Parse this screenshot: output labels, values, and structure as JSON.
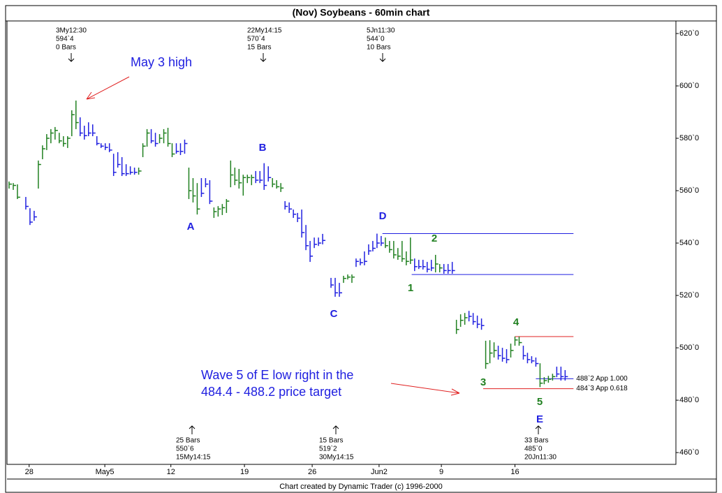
{
  "chart_data": {
    "type": "hlc",
    "title": "(Nov) Soybeans - 60min chart",
    "footer": "Chart created by Dynamic Trader (c) 1996-2000",
    "xlim": [
      -0.5,
      159.5
    ],
    "ylim": [
      455.5,
      624.8
    ],
    "yticks": [
      {
        "value": 460,
        "label": "460`0"
      },
      {
        "value": 480,
        "label": "480`0"
      },
      {
        "value": 500,
        "label": "500`0"
      },
      {
        "value": 520,
        "label": "520`0"
      },
      {
        "value": 540,
        "label": "540`0"
      },
      {
        "value": 560,
        "label": "560`0"
      },
      {
        "value": 580,
        "label": "580`0"
      },
      {
        "value": 600,
        "label": "600`0"
      },
      {
        "value": 620,
        "label": "620`0"
      }
    ],
    "xticks": [
      {
        "value": 4.8,
        "label": "28"
      },
      {
        "value": 22.9,
        "label": "May5"
      },
      {
        "value": 38.7,
        "label": "12"
      },
      {
        "value": 56.3,
        "label": "19"
      },
      {
        "value": 72.5,
        "label": "26"
      },
      {
        "value": 88.5,
        "label": "Jun2"
      },
      {
        "value": 103.4,
        "label": "9"
      },
      {
        "value": 121,
        "label": "16"
      }
    ],
    "x": [
      0,
      1,
      2,
      4,
      5,
      6,
      7,
      8,
      9,
      10,
      11,
      12,
      13,
      14,
      15,
      16,
      17,
      18,
      19,
      20,
      21,
      22,
      23,
      24,
      25,
      26,
      27,
      28,
      29,
      30,
      31,
      32,
      33,
      34,
      35,
      36,
      37,
      38,
      39,
      40,
      41,
      42,
      43,
      44,
      45,
      46,
      47,
      48,
      49,
      50,
      51,
      52,
      53,
      54,
      55,
      56,
      57,
      58,
      59,
      60,
      61,
      62,
      63,
      64,
      65,
      66,
      67,
      68,
      69,
      70,
      71,
      72,
      73,
      74,
      75,
      77,
      78,
      79,
      80,
      81,
      82,
      83,
      84,
      85,
      86,
      87,
      88,
      89,
      90,
      91,
      92,
      93,
      94,
      95,
      96,
      97,
      98,
      99,
      100,
      101,
      102,
      103,
      104,
      105,
      106,
      107,
      108,
      109,
      110,
      111,
      112,
      113,
      114,
      115,
      116,
      117,
      118,
      119,
      120,
      121,
      122,
      123,
      124,
      125,
      126,
      127,
      128,
      129,
      130,
      131,
      132,
      133
    ],
    "high": [
      563.5,
      562.9,
      562.4,
      557.6,
      553.3,
      552.3,
      571.5,
      577.3,
      581.6,
      583.5,
      584.3,
      582.1,
      580.8,
      580.8,
      590.7,
      594.4,
      588,
      584.8,
      586.1,
      585.3,
      580.8,
      578.1,
      578.1,
      578.1,
      574.1,
      574.7,
      572.8,
      570.1,
      569.3,
      568.8,
      568.8,
      578.1,
      583.5,
      583.5,
      582.1,
      581.6,
      583.5,
      584,
      578.1,
      578.1,
      578.1,
      579.5,
      568.8,
      564.8,
      562.9,
      564.8,
      564.8,
      564,
      553.6,
      554.1,
      554.9,
      556.8,
      571.5,
      568.8,
      568.3,
      566.1,
      566.1,
      566.1,
      567.5,
      567.5,
      570.5,
      569.3,
      564.8,
      564,
      562.9,
      556,
      555.5,
      552.8,
      551.5,
      552.8,
      546.9,
      540.8,
      542.1,
      542.1,
      543.5,
      526.7,
      526.7,
      524.8,
      527.5,
      528,
      528,
      534.1,
      534.1,
      536.8,
      539.5,
      540.8,
      543.6,
      542.7,
      542.1,
      540.8,
      540.8,
      538.1,
      540.8,
      536.8,
      542.1,
      534.1,
      533.6,
      533.6,
      532.8,
      533.6,
      535.5,
      532,
      532,
      532,
      532.8,
      510.7,
      512.8,
      513.3,
      514.1,
      513.3,
      512.3,
      511.2,
      502.7,
      502.9,
      502.1,
      500.8,
      500,
      499.5,
      501.6,
      504.3,
      504.3,
      500.8,
      498.1,
      496.8,
      496.3,
      494.1,
      488.8,
      489.3,
      490.1,
      492.8,
      492.8,
      491.5
    ],
    "low": [
      560.8,
      560.3,
      556.8,
      552.8,
      546.9,
      548.5,
      560.8,
      572,
      575.5,
      578.1,
      579.5,
      578.1,
      576.8,
      576.3,
      580.8,
      583.5,
      580.8,
      579.5,
      580.8,
      580.8,
      577.3,
      576.3,
      575.5,
      574.7,
      565.6,
      568.8,
      565.6,
      565.6,
      566.1,
      566.1,
      566.1,
      572.8,
      576.8,
      578.1,
      576.8,
      578.1,
      578.1,
      576.8,
      572.8,
      574.1,
      573.6,
      574.1,
      556.8,
      555.5,
      550.9,
      557.6,
      561.3,
      554.9,
      549.6,
      550.1,
      550.7,
      551.5,
      561.3,
      562.1,
      560.8,
      558.1,
      562.9,
      562.1,
      562.9,
      562.9,
      560.3,
      563.5,
      561.3,
      560.8,
      559.5,
      552.8,
      551.5,
      549.6,
      548,
      542.1,
      537.3,
      532.8,
      538.1,
      538.9,
      539.5,
      522.9,
      519.5,
      519.5,
      524.8,
      526.1,
      524.8,
      530.9,
      531.5,
      531.5,
      535.5,
      536.8,
      538.1,
      538.9,
      538.1,
      536.3,
      534.1,
      533.6,
      532.8,
      531.5,
      532,
      529.3,
      530.1,
      529.9,
      528.8,
      529.3,
      528.8,
      528.8,
      528.3,
      528.3,
      528.3,
      505.3,
      508,
      508.8,
      510.1,
      508.8,
      507.5,
      506.9,
      492,
      494.1,
      496.3,
      495.5,
      494.7,
      494.1,
      496.3,
      500.8,
      500.8,
      495.5,
      494.1,
      494.1,
      492.8,
      485,
      486.1,
      486.7,
      487.5,
      488.8,
      487.5,
      487.5
    ],
    "close": [
      562.5,
      562,
      557.5,
      554,
      548,
      550,
      570,
      576,
      580,
      582,
      583,
      579,
      578,
      580,
      589,
      586,
      582,
      581,
      582,
      582,
      578,
      577,
      576.5,
      575.5,
      567,
      570,
      566.5,
      566.5,
      567,
      567,
      567.5,
      577,
      582,
      579,
      578,
      580,
      582,
      578,
      574,
      575,
      575,
      578,
      560,
      558,
      553,
      559,
      562.5,
      556,
      552,
      553,
      553.5,
      556,
      566,
      564,
      563,
      565,
      565,
      565,
      564,
      564,
      562,
      565,
      562.5,
      561.5,
      561,
      554,
      553,
      551,
      549.5,
      544,
      539,
      535,
      539.5,
      540,
      541,
      524,
      521,
      521,
      526.5,
      527,
      527,
      533,
      532.5,
      533,
      537,
      538,
      540,
      540,
      539,
      537.5,
      535.5,
      535,
      534,
      533,
      533.5,
      531,
      531,
      531,
      530,
      530.5,
      532,
      530.5,
      529.5,
      529.5,
      529.5,
      507,
      510.5,
      511.5,
      512,
      510,
      509,
      508.5,
      494,
      498,
      499,
      497,
      496,
      495.5,
      499,
      503,
      502,
      497,
      495.5,
      495,
      494,
      486.5,
      487.5,
      488,
      489,
      490,
      489,
      489
    ],
    "colors": [
      "#208020",
      "#208020",
      "#208020",
      "#2020e0",
      "#2020e0",
      "#2020e0",
      "#208020",
      "#208020",
      "#208020",
      "#208020",
      "#208020",
      "#208020",
      "#208020",
      "#208020",
      "#208020",
      "#208020",
      "#2020e0",
      "#2020e0",
      "#2020e0",
      "#2020e0",
      "#2020e0",
      "#2020e0",
      "#2020e0",
      "#2020e0",
      "#2020e0",
      "#2020e0",
      "#2020e0",
      "#2020e0",
      "#2020e0",
      "#2020e0",
      "#208020",
      "#208020",
      "#208020",
      "#2020e0",
      "#2020e0",
      "#208020",
      "#208020",
      "#208020",
      "#208020",
      "#2020e0",
      "#2020e0",
      "#2020e0",
      "#208020",
      "#208020",
      "#208020",
      "#2020e0",
      "#2020e0",
      "#2020e0",
      "#208020",
      "#208020",
      "#208020",
      "#208020",
      "#208020",
      "#208020",
      "#208020",
      "#208020",
      "#208020",
      "#208020",
      "#2020e0",
      "#2020e0",
      "#2020e0",
      "#2020e0",
      "#208020",
      "#208020",
      "#208020",
      "#2020e0",
      "#2020e0",
      "#2020e0",
      "#2020e0",
      "#2020e0",
      "#2020e0",
      "#2020e0",
      "#2020e0",
      "#2020e0",
      "#2020e0",
      "#2020e0",
      "#2020e0",
      "#2020e0",
      "#208020",
      "#208020",
      "#208020",
      "#2020e0",
      "#2020e0",
      "#2020e0",
      "#2020e0",
      "#2020e0",
      "#2020e0",
      "#2020e0",
      "#208020",
      "#208020",
      "#208020",
      "#208020",
      "#208020",
      "#208020",
      "#208020",
      "#2020e0",
      "#2020e0",
      "#2020e0",
      "#2020e0",
      "#2020e0",
      "#208020",
      "#208020",
      "#2020e0",
      "#2020e0",
      "#2020e0",
      "#208020",
      "#208020",
      "#208020",
      "#2020e0",
      "#2020e0",
      "#2020e0",
      "#2020e0",
      "#208020",
      "#208020",
      "#208020",
      "#2020e0",
      "#2020e0",
      "#2020e0",
      "#208020",
      "#208020",
      "#208020",
      "#2020e0",
      "#2020e0",
      "#2020e0",
      "#2020e0",
      "#208020",
      "#208020",
      "#208020",
      "#208020",
      "#2020e0",
      "#2020e0",
      "#2020e0"
    ],
    "levels": [
      {
        "value": 543.6,
        "from": 89.3,
        "to": 135,
        "color": "#2020e0"
      },
      {
        "value": 528,
        "from": 96.3,
        "to": 135,
        "color": "#2020e0"
      },
      {
        "value": 504.3,
        "from": 121,
        "to": 135,
        "color": "#e02020"
      },
      {
        "value": 488.2,
        "from": 126,
        "to": 135,
        "color": "#2020e0",
        "label": "488`2 App 1.000"
      },
      {
        "value": 484.4,
        "from": 113.4,
        "to": 135,
        "color": "#e02020",
        "label": "484`3 App 0.618"
      }
    ],
    "pivots_top": [
      {
        "lines": [
          "3My12:30",
          "594`4",
          "0 Bars"
        ]
      },
      {
        "lines": [
          "22My14:15",
          "570`4",
          "15 Bars"
        ]
      },
      {
        "lines": [
          "5Jn11:30",
          "544`0",
          "10 Bars"
        ]
      }
    ],
    "pivots_bottom": [
      {
        "lines": [
          "25 Bars",
          "550`6",
          "15My14:15"
        ]
      },
      {
        "lines": [
          "15 Bars",
          "519`2",
          "30My14:15"
        ]
      },
      {
        "lines": [
          "33 Bars",
          "485`0",
          "20Jn11:30"
        ]
      }
    ],
    "swing_labels": [
      "A",
      "B",
      "C",
      "D",
      "E"
    ],
    "wave_labels": [
      "1",
      "2",
      "3",
      "4",
      "5"
    ],
    "annotations": [
      "May 3 high",
      "Wave 5 of E low right in the",
      "484.4 - 488.2 price target"
    ]
  }
}
